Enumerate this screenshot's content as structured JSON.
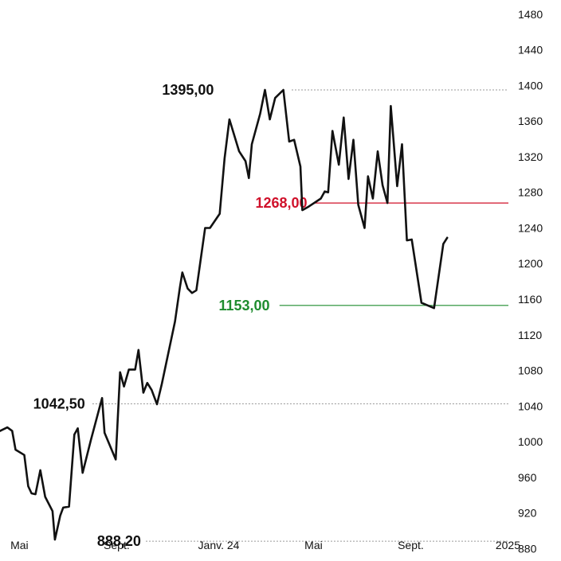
{
  "chart_data": {
    "type": "line",
    "title": "",
    "xlabel": "",
    "ylabel": "",
    "ylim": [
      866,
      1496
    ],
    "grid": false,
    "legend": "none",
    "y_ticks": [
      880,
      920,
      960,
      1000,
      1040,
      1080,
      1120,
      1160,
      1200,
      1240,
      1280,
      1320,
      1360,
      1400,
      1440,
      1480
    ],
    "x_ticks": [
      {
        "label": "Mai",
        "x": 0.04
      },
      {
        "label": "Sept.",
        "x": 0.24
      },
      {
        "label": "Janv. 24",
        "x": 0.45
      },
      {
        "label": "Mai",
        "x": 0.645
      },
      {
        "label": "Sept.",
        "x": 0.845
      },
      {
        "label": "2025",
        "x": 1.045
      }
    ],
    "series": [
      {
        "color": "#111111",
        "points": [
          [
            0.0,
            1012
          ],
          [
            0.015,
            1016
          ],
          [
            0.025,
            1012
          ],
          [
            0.032,
            991
          ],
          [
            0.05,
            985
          ],
          [
            0.058,
            950
          ],
          [
            0.065,
            942
          ],
          [
            0.073,
            941
          ],
          [
            0.083,
            968
          ],
          [
            0.093,
            938
          ],
          [
            0.108,
            922
          ],
          [
            0.113,
            890
          ],
          [
            0.124,
            917
          ],
          [
            0.13,
            926
          ],
          [
            0.142,
            927
          ],
          [
            0.153,
            1008
          ],
          [
            0.16,
            1015
          ],
          [
            0.17,
            965
          ],
          [
            0.187,
            1002
          ],
          [
            0.21,
            1049
          ],
          [
            0.215,
            1010
          ],
          [
            0.238,
            980
          ],
          [
            0.247,
            1078
          ],
          [
            0.255,
            1062
          ],
          [
            0.265,
            1081
          ],
          [
            0.278,
            1081
          ],
          [
            0.285,
            1103
          ],
          [
            0.295,
            1055
          ],
          [
            0.303,
            1066
          ],
          [
            0.312,
            1058
          ],
          [
            0.323,
            1042
          ],
          [
            0.333,
            1065
          ],
          [
            0.36,
            1135
          ],
          [
            0.37,
            1173
          ],
          [
            0.375,
            1190
          ],
          [
            0.386,
            1172
          ],
          [
            0.395,
            1167
          ],
          [
            0.404,
            1170
          ],
          [
            0.422,
            1240
          ],
          [
            0.432,
            1240
          ],
          [
            0.452,
            1256
          ],
          [
            0.462,
            1318
          ],
          [
            0.472,
            1362
          ],
          [
            0.492,
            1326
          ],
          [
            0.505,
            1315
          ],
          [
            0.512,
            1296
          ],
          [
            0.518,
            1334
          ],
          [
            0.535,
            1368
          ],
          [
            0.545,
            1395
          ],
          [
            0.555,
            1362
          ],
          [
            0.566,
            1386
          ],
          [
            0.583,
            1395
          ],
          [
            0.595,
            1337
          ],
          [
            0.605,
            1339
          ],
          [
            0.618,
            1309
          ],
          [
            0.622,
            1260
          ],
          [
            0.635,
            1264
          ],
          [
            0.66,
            1273
          ],
          [
            0.668,
            1281
          ],
          [
            0.675,
            1280
          ],
          [
            0.684,
            1349
          ],
          [
            0.697,
            1311
          ],
          [
            0.707,
            1364
          ],
          [
            0.717,
            1295
          ],
          [
            0.727,
            1339
          ],
          [
            0.737,
            1266
          ],
          [
            0.75,
            1240
          ],
          [
            0.757,
            1298
          ],
          [
            0.767,
            1273
          ],
          [
            0.777,
            1326
          ],
          [
            0.787,
            1288
          ],
          [
            0.797,
            1268
          ],
          [
            0.804,
            1377
          ],
          [
            0.817,
            1287
          ],
          [
            0.827,
            1334
          ],
          [
            0.837,
            1226
          ],
          [
            0.847,
            1227
          ],
          [
            0.867,
            1156
          ],
          [
            0.893,
            1150
          ],
          [
            0.912,
            1222
          ],
          [
            0.92,
            1229
          ]
        ]
      }
    ],
    "annotations": [
      {
        "label": "1395,00",
        "value": 1395,
        "color": "#111111",
        "line": "dotted",
        "line_from": 0.6,
        "label_right": 0.44
      },
      {
        "label": "1268,00",
        "value": 1268,
        "color": "#d0102a",
        "line": "solid",
        "line_from": 0.645,
        "label_right": 0.632
      },
      {
        "label": "1153,00",
        "value": 1153,
        "color": "#1e8c2e",
        "line": "solid",
        "line_from": 0.575,
        "label_right": 0.555
      },
      {
        "label": "1042,50",
        "value": 1042.5,
        "color": "#111111",
        "line": "dotted",
        "line_from": 0.19,
        "label_right": 0.175
      },
      {
        "label": "888,20",
        "value": 888.2,
        "color": "#111111",
        "line": "dotted",
        "line_from": 0.3,
        "label_right": 0.29
      }
    ]
  }
}
